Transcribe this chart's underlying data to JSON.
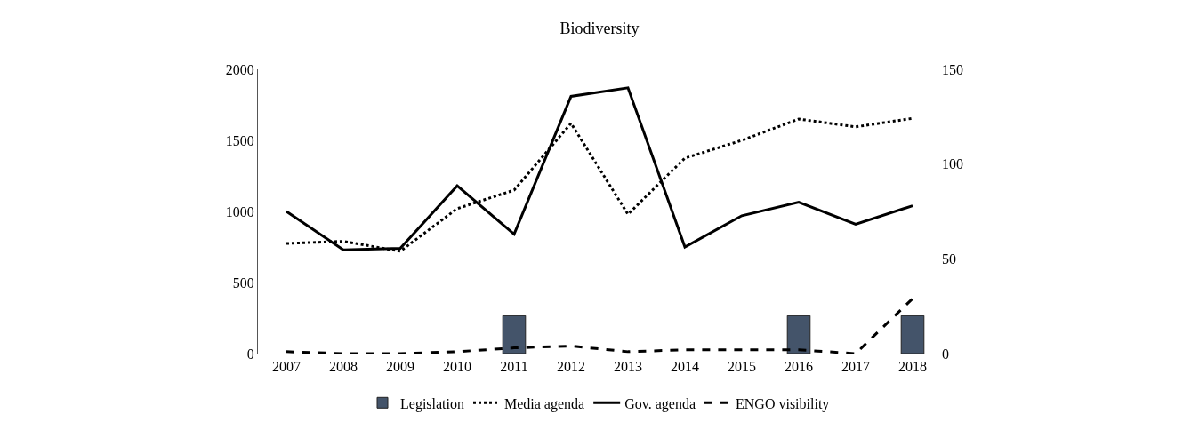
{
  "chart_data": {
    "type": "line",
    "title": "Biodiversity",
    "categories": [
      "2007",
      "2008",
      "2009",
      "2010",
      "2011",
      "2012",
      "2013",
      "2014",
      "2015",
      "2016",
      "2017",
      "2018"
    ],
    "series": [
      {
        "name": "Legislation",
        "type": "bar",
        "axis": "y2",
        "color": "#44546a",
        "values": [
          null,
          null,
          null,
          null,
          20,
          null,
          null,
          null,
          null,
          20,
          null,
          20
        ]
      },
      {
        "name": "Media agenda",
        "color": "#000000",
        "line_style": "dotted",
        "values": [
          775,
          790,
          720,
          1020,
          1150,
          1620,
          980,
          1375,
          1500,
          1650,
          1595,
          1655
        ]
      },
      {
        "name": "Gov. agenda",
        "color": "#000000",
        "line_style": "solid",
        "values": [
          1000,
          730,
          740,
          1180,
          840,
          1810,
          1870,
          750,
          970,
          1065,
          910,
          1040
        ]
      },
      {
        "name": "ENGO visibility",
        "axis": "y2",
        "color": "#000000",
        "line_style": "dashed",
        "values": [
          1,
          0,
          0,
          1,
          3,
          4,
          1,
          2,
          2,
          2,
          0,
          29
        ]
      }
    ],
    "ylim": [
      0,
      2000
    ],
    "yticks": [
      0,
      500,
      1000,
      1500,
      2000
    ],
    "y2lim": [
      0,
      150
    ],
    "y2ticks": [
      0,
      50,
      100,
      150
    ],
    "legend": "bottom",
    "marker": "none"
  }
}
